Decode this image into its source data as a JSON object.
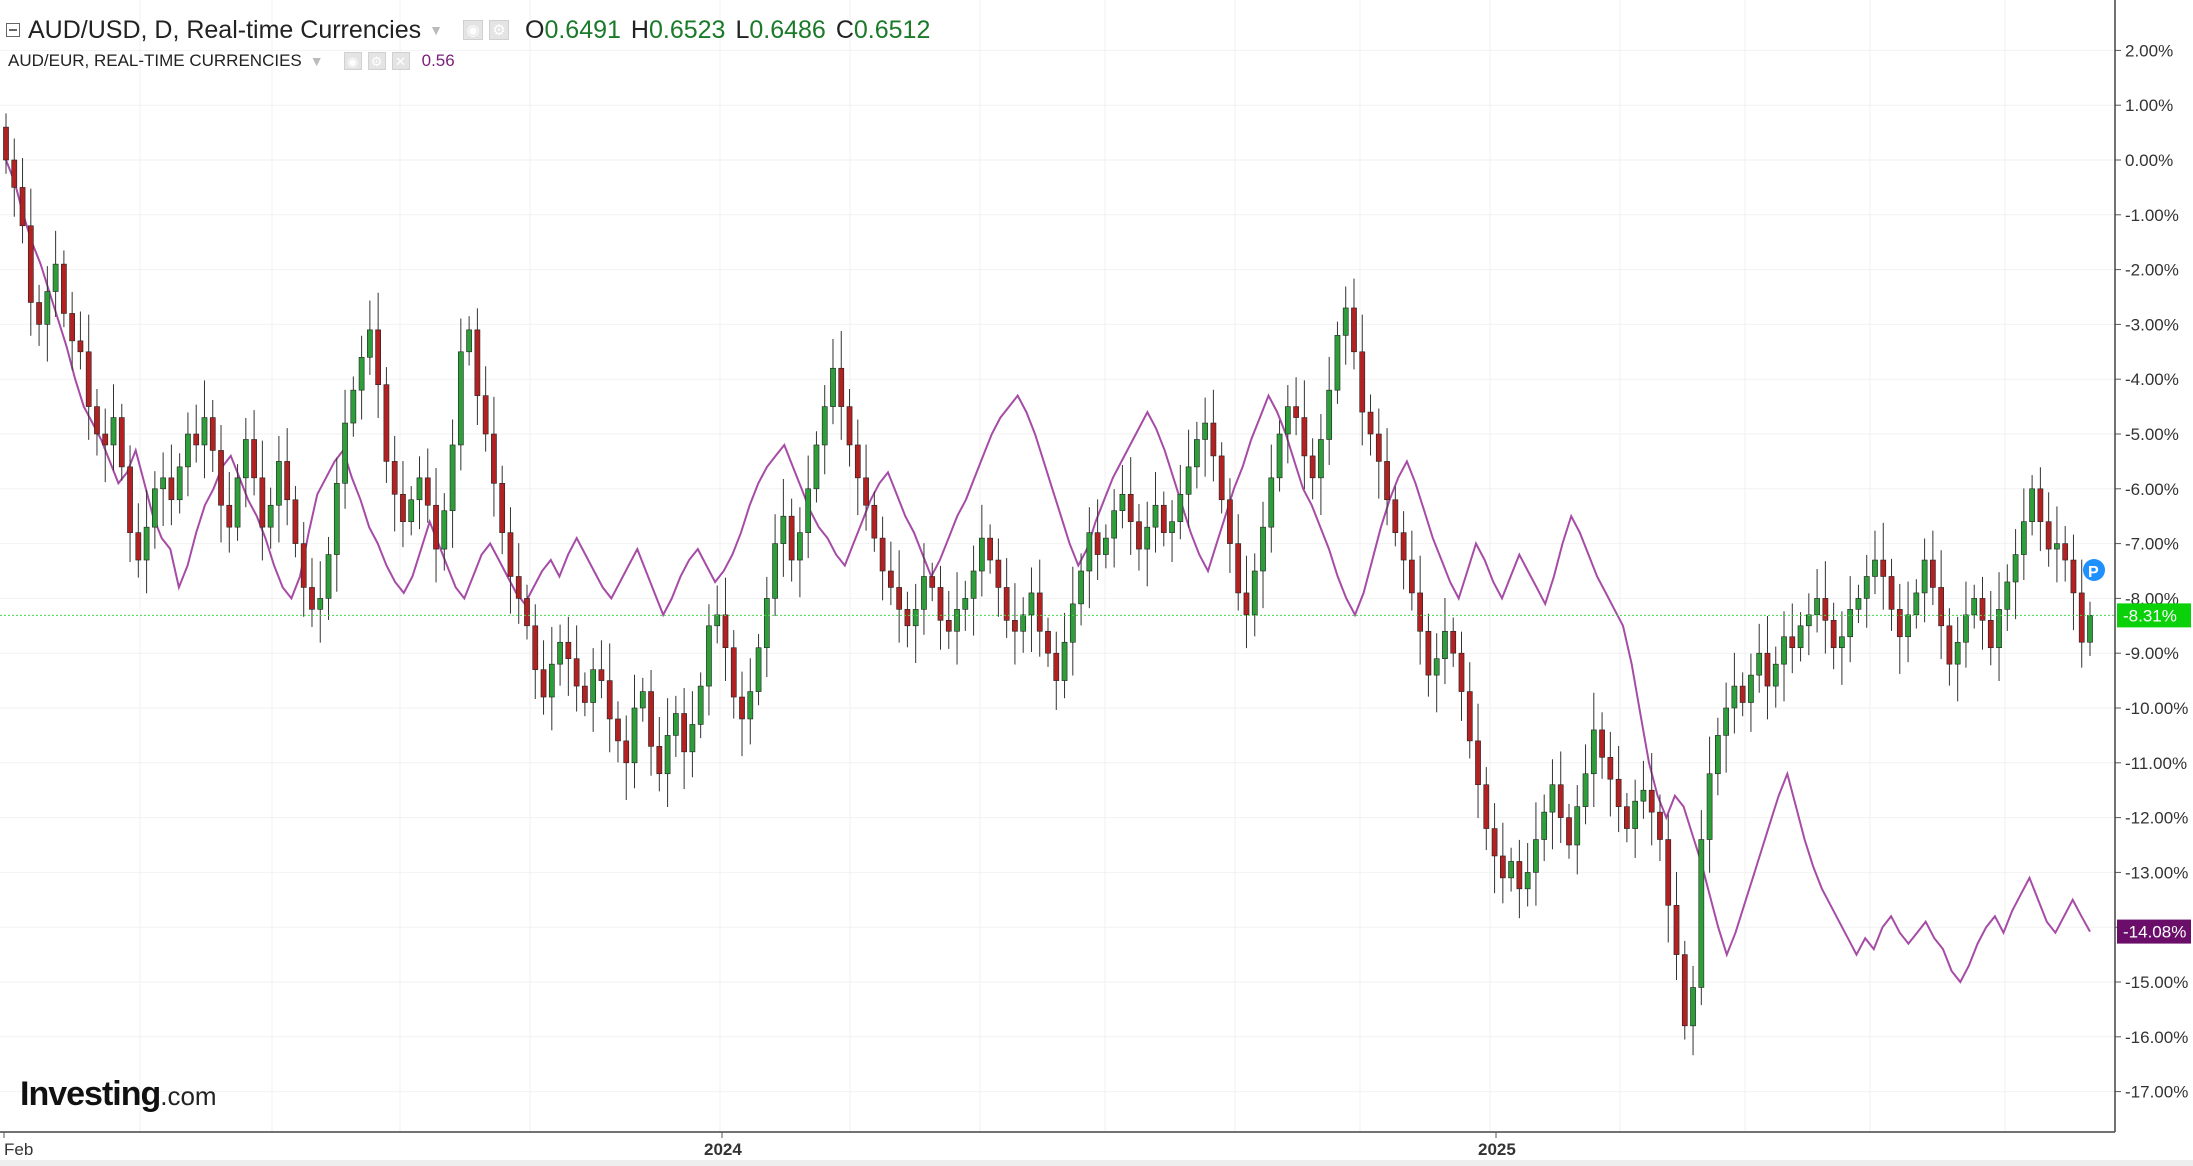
{
  "header": {
    "main": {
      "symbol_label": "AUD/USD, D, Real-time Currencies",
      "o_label": "O",
      "o": "0.6491",
      "h_label": "H",
      "h": "0.6523",
      "l_label": "L",
      "l": "0.6486",
      "c_label": "C",
      "c": "0.6512"
    },
    "compare": {
      "symbol_label": "AUD/EUR, REAL-TIME CURRENCIES",
      "value": "0.56"
    }
  },
  "logo": {
    "main": "Investing",
    "suffix": ".com"
  },
  "markers": {
    "p_badge": "P"
  },
  "colors": {
    "up": "#2e9e3a",
    "down": "#b22222",
    "wick": "#333333",
    "compare": "#a64ca6",
    "current_line": "#4bd24b",
    "aud_usd_badge": "#0bd10b",
    "aud_eur_badge": "#6a0e6a",
    "p_badge": "#1e90ff"
  },
  "chart_data": {
    "type": "line",
    "title": "AUD/USD, D, Real-time Currencies",
    "x_axis": {
      "tick_labels": [
        "Feb",
        "2024",
        "2025"
      ],
      "range": [
        "2023-02",
        "2025-09"
      ]
    },
    "y_axis": {
      "unit": "% change",
      "range": [
        -17.5,
        2.5
      ],
      "tick_labels": [
        "2.00%",
        "1.00%",
        "0.00%",
        "-1.00%",
        "-2.00%",
        "-3.00%",
        "-4.00%",
        "-5.00%",
        "-6.00%",
        "-7.00%",
        "-8.00%",
        "-9.00%",
        "-10.00%",
        "-11.00%",
        "-12.00%",
        "-13.00%",
        "-14.00%",
        "-15.00%",
        "-16.00%",
        "-17.00%"
      ],
      "side": "right"
    },
    "current_value_labels": {
      "aud_usd": "-8.31%",
      "aud_eur": "-14.08%"
    },
    "grid": true,
    "series": [
      {
        "name": "AUD/USD",
        "style": "candlestick",
        "x_start": "2023-02",
        "x_end": "2025-09",
        "close_pct": [
          0.0,
          -0.5,
          -1.2,
          -2.6,
          -3.0,
          -2.4,
          -1.9,
          -2.8,
          -3.3,
          -3.5,
          -4.5,
          -5.0,
          -5.2,
          -4.7,
          -5.6,
          -6.8,
          -7.3,
          -6.7,
          -6.0,
          -5.8,
          -6.2,
          -5.6,
          -5.0,
          -5.2,
          -4.7,
          -5.3,
          -6.3,
          -6.7,
          -5.8,
          -5.1,
          -5.8,
          -6.7,
          -6.3,
          -5.5,
          -6.2,
          -7.0,
          -7.8,
          -8.2,
          -8.0,
          -7.2,
          -5.9,
          -4.8,
          -4.2,
          -3.6,
          -3.1,
          -4.1,
          -5.5,
          -6.1,
          -6.6,
          -6.2,
          -5.8,
          -6.3,
          -7.1,
          -6.4,
          -5.2,
          -3.5,
          -3.1,
          -4.3,
          -5.0,
          -5.9,
          -6.8,
          -7.6,
          -8.0,
          -8.5,
          -9.3,
          -9.8,
          -9.2,
          -8.8,
          -9.1,
          -9.6,
          -9.9,
          -9.3,
          -9.5,
          -10.2,
          -10.6,
          -11.0,
          -10.0,
          -9.7,
          -10.7,
          -11.2,
          -10.5,
          -10.1,
          -10.8,
          -10.3,
          -9.6,
          -8.5,
          -8.3,
          -8.9,
          -9.8,
          -10.2,
          -9.7,
          -8.9,
          -8.0,
          -7.0,
          -6.5,
          -7.3,
          -6.8,
          -6.0,
          -5.2,
          -4.5,
          -3.8,
          -4.5,
          -5.2,
          -5.8,
          -6.3,
          -6.9,
          -7.5,
          -7.8,
          -8.2,
          -8.5,
          -8.2,
          -7.6,
          -7.8,
          -8.4,
          -8.6,
          -8.2,
          -8.0,
          -7.5,
          -6.9,
          -7.3,
          -7.8,
          -8.4,
          -8.6,
          -8.3,
          -7.9,
          -8.6,
          -9.0,
          -9.5,
          -8.8,
          -8.1,
          -7.5,
          -6.8,
          -7.2,
          -6.9,
          -6.4,
          -6.1,
          -6.6,
          -7.1,
          -6.7,
          -6.3,
          -6.8,
          -6.6,
          -6.1,
          -5.6,
          -5.1,
          -4.8,
          -5.4,
          -6.2,
          -7.0,
          -7.9,
          -8.3,
          -7.5,
          -6.7,
          -5.8,
          -5.0,
          -4.5,
          -4.7,
          -5.4,
          -5.8,
          -5.1,
          -4.2,
          -3.2,
          -2.7,
          -3.5,
          -4.6,
          -5.0,
          -5.5,
          -6.2,
          -6.8,
          -7.3,
          -7.9,
          -8.6,
          -9.4,
          -9.1,
          -8.6,
          -9.0,
          -9.7,
          -10.6,
          -11.4,
          -12.2,
          -12.7,
          -13.1,
          -12.8,
          -13.3,
          -13.0,
          -12.4,
          -11.9,
          -11.4,
          -12.0,
          -12.5,
          -11.8,
          -11.2,
          -10.4,
          -10.9,
          -11.3,
          -11.8,
          -12.2,
          -11.7,
          -11.5,
          -11.9,
          -12.4,
          -13.6,
          -14.5,
          -15.8,
          -15.1,
          -12.4,
          -11.2,
          -10.5,
          -10.0,
          -9.6,
          -9.9,
          -9.4,
          -9.0,
          -9.6,
          -9.2,
          -8.7,
          -8.9,
          -8.5,
          -8.3,
          -8.0,
          -8.4,
          -8.9,
          -8.7,
          -8.2,
          -8.0,
          -7.6,
          -7.3,
          -7.6,
          -8.2,
          -8.7,
          -8.3,
          -7.9,
          -7.3,
          -7.8,
          -8.5,
          -9.2,
          -8.8,
          -8.3,
          -8.0,
          -8.4,
          -8.9,
          -8.2,
          -7.7,
          -7.2,
          -6.6,
          -6.0,
          -6.6,
          -7.1,
          -7.0,
          -7.3,
          -7.9,
          -8.8,
          -8.31
        ]
      },
      {
        "name": "AUD/EUR",
        "style": "line",
        "x_start": "2023-02",
        "x_end": "2025-09",
        "values_pct": [
          0.0,
          -0.4,
          -1.0,
          -1.5,
          -1.9,
          -2.4,
          -2.9,
          -3.4,
          -4.0,
          -4.5,
          -4.8,
          -5.1,
          -5.5,
          -5.9,
          -5.7,
          -5.3,
          -5.9,
          -6.5,
          -6.9,
          -7.1,
          -7.8,
          -7.4,
          -6.8,
          -6.3,
          -6.0,
          -5.6,
          -5.4,
          -5.8,
          -6.2,
          -6.5,
          -6.9,
          -7.4,
          -7.8,
          -8.0,
          -7.6,
          -6.8,
          -6.1,
          -5.8,
          -5.5,
          -5.3,
          -5.8,
          -6.2,
          -6.7,
          -7.0,
          -7.4,
          -7.7,
          -7.9,
          -7.6,
          -7.1,
          -6.6,
          -7.0,
          -7.4,
          -7.8,
          -8.0,
          -7.6,
          -7.2,
          -7.0,
          -7.3,
          -7.6,
          -7.9,
          -8.1,
          -7.8,
          -7.5,
          -7.3,
          -7.6,
          -7.2,
          -6.9,
          -7.2,
          -7.5,
          -7.8,
          -8.0,
          -7.7,
          -7.4,
          -7.1,
          -7.5,
          -7.9,
          -8.3,
          -8.0,
          -7.6,
          -7.3,
          -7.1,
          -7.4,
          -7.7,
          -7.5,
          -7.2,
          -6.8,
          -6.3,
          -5.9,
          -5.6,
          -5.4,
          -5.2,
          -5.6,
          -6.0,
          -6.4,
          -6.7,
          -6.9,
          -7.2,
          -7.4,
          -7.0,
          -6.6,
          -6.2,
          -5.9,
          -5.7,
          -6.1,
          -6.5,
          -6.8,
          -7.2,
          -7.6,
          -7.3,
          -6.9,
          -6.5,
          -6.2,
          -5.8,
          -5.4,
          -5.0,
          -4.7,
          -4.5,
          -4.3,
          -4.6,
          -5.0,
          -5.5,
          -6.0,
          -6.5,
          -7.0,
          -7.4,
          -7.1,
          -6.6,
          -6.2,
          -5.8,
          -5.5,
          -5.2,
          -4.9,
          -4.6,
          -4.9,
          -5.3,
          -5.8,
          -6.3,
          -6.8,
          -7.2,
          -7.5,
          -7.0,
          -6.5,
          -6.0,
          -5.6,
          -5.1,
          -4.7,
          -4.3,
          -4.6,
          -5.0,
          -5.5,
          -6.0,
          -6.3,
          -6.7,
          -7.1,
          -7.6,
          -8.0,
          -8.3,
          -7.9,
          -7.3,
          -6.7,
          -6.2,
          -5.8,
          -5.5,
          -5.9,
          -6.4,
          -6.9,
          -7.3,
          -7.7,
          -8.0,
          -7.5,
          -7.0,
          -7.3,
          -7.7,
          -8.0,
          -7.6,
          -7.2,
          -7.5,
          -7.8,
          -8.1,
          -7.6,
          -7.0,
          -6.5,
          -6.8,
          -7.2,
          -7.6,
          -7.9,
          -8.2,
          -8.5,
          -9.2,
          -10.1,
          -11.0,
          -11.6,
          -12.0,
          -11.6,
          -11.8,
          -12.3,
          -12.8,
          -13.4,
          -14.0,
          -14.5,
          -14.1,
          -13.6,
          -13.1,
          -12.6,
          -12.1,
          -11.6,
          -11.2,
          -11.8,
          -12.4,
          -12.9,
          -13.3,
          -13.6,
          -13.9,
          -14.2,
          -14.5,
          -14.2,
          -14.4,
          -14.0,
          -13.8,
          -14.1,
          -14.3,
          -14.1,
          -13.9,
          -14.2,
          -14.4,
          -14.8,
          -15.0,
          -14.7,
          -14.3,
          -14.0,
          -13.8,
          -14.1,
          -13.7,
          -13.4,
          -13.1,
          -13.5,
          -13.9,
          -14.1,
          -13.8,
          -13.5,
          -13.8,
          -14.08
        ]
      }
    ]
  }
}
